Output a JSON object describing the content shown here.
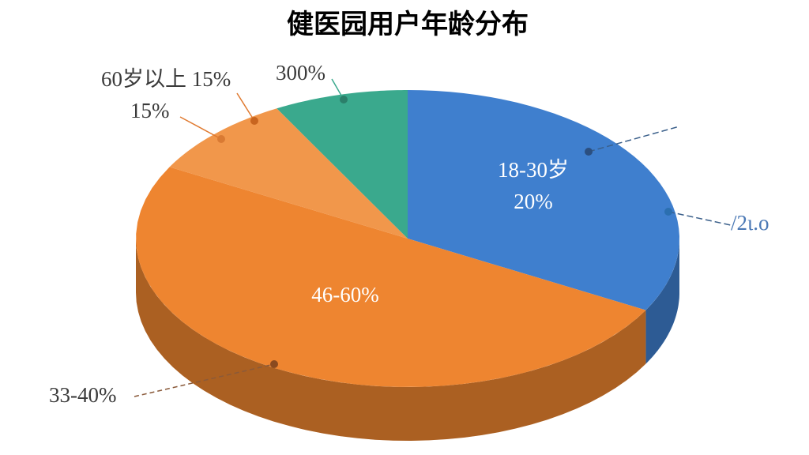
{
  "chart_data": {
    "type": "pie3d",
    "title": "健医园用户年龄分布",
    "values": [
      33,
      50,
      9,
      8
    ],
    "colors": [
      "#3f7fce",
      "#ee8530",
      "#f1974b",
      "#3aa98d"
    ],
    "annotations": [
      {
        "text": "18-30岁",
        "color": "#ffffff"
      },
      {
        "text": "20%",
        "color": "#ffffff"
      },
      {
        "text": "46-60%",
        "color": "#ffffff"
      },
      {
        "text": "60岁以上 15%",
        "color": "#3a3a3a"
      },
      {
        "text": "15%",
        "color": "#3a3a3a"
      },
      {
        "text": "300%",
        "color": "#3a3a3a"
      },
      {
        "text": "33-40%",
        "color": "#3a3a3a"
      },
      {
        "text": "/2ι.ο",
        "color": "#4a78b5"
      }
    ]
  }
}
